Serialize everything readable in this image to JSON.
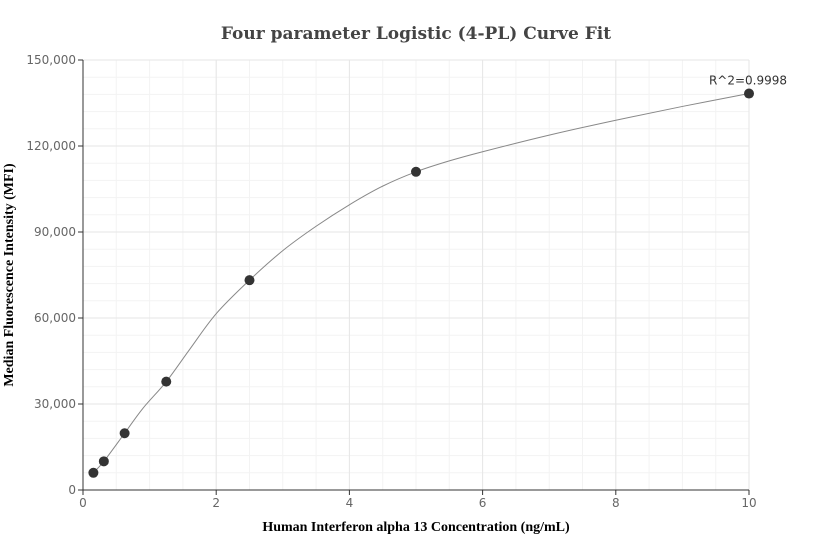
{
  "chart_data": {
    "type": "scatter",
    "title": "Four parameter Logistic (4-PL) Curve Fit",
    "xlabel": "Human Interferon alpha 13 Concentration (ng/mL)",
    "ylabel": "Median Fluorescence Intensity (MFI)",
    "xlim": [
      0,
      10
    ],
    "ylim": [
      0,
      150000
    ],
    "x_ticks": [
      0,
      2,
      4,
      6,
      8,
      10
    ],
    "y_ticks": [
      0,
      30000,
      60000,
      90000,
      120000,
      150000
    ],
    "x_tick_labels": [
      "0",
      "2",
      "4",
      "6",
      "8",
      "10"
    ],
    "y_tick_labels": [
      "0",
      "30,000",
      "60,000",
      "90,000",
      "120,000",
      "150,000"
    ],
    "grid": true,
    "points": [
      {
        "x": 0.156,
        "y": 6000
      },
      {
        "x": 0.313,
        "y": 10000
      },
      {
        "x": 0.625,
        "y": 19800
      },
      {
        "x": 1.25,
        "y": 37800
      },
      {
        "x": 2.5,
        "y": 73200
      },
      {
        "x": 5,
        "y": 111000
      },
      {
        "x": 10,
        "y": 138300
      }
    ],
    "fit_curve": {
      "model": "4PL",
      "x": [
        0.156,
        0.313,
        0.625,
        0.9,
        1.25,
        1.6,
        2.0,
        2.5,
        3.0,
        3.5,
        4.0,
        4.5,
        5.0,
        5.5,
        6.0,
        7.0,
        8.0,
        9.0,
        10.0
      ],
      "y": [
        6000,
        10000,
        19800,
        28500,
        37800,
        49000,
        61500,
        73200,
        83500,
        92000,
        99500,
        106000,
        111000,
        114800,
        118000,
        123800,
        129000,
        133800,
        138300
      ]
    },
    "annotation": "R^2=0.9998",
    "colors": {
      "point": "#333333",
      "curve": "#888888",
      "grid_major": "#e6e6e6",
      "grid_minor": "#f3f3f3",
      "axis": "#333333"
    }
  }
}
